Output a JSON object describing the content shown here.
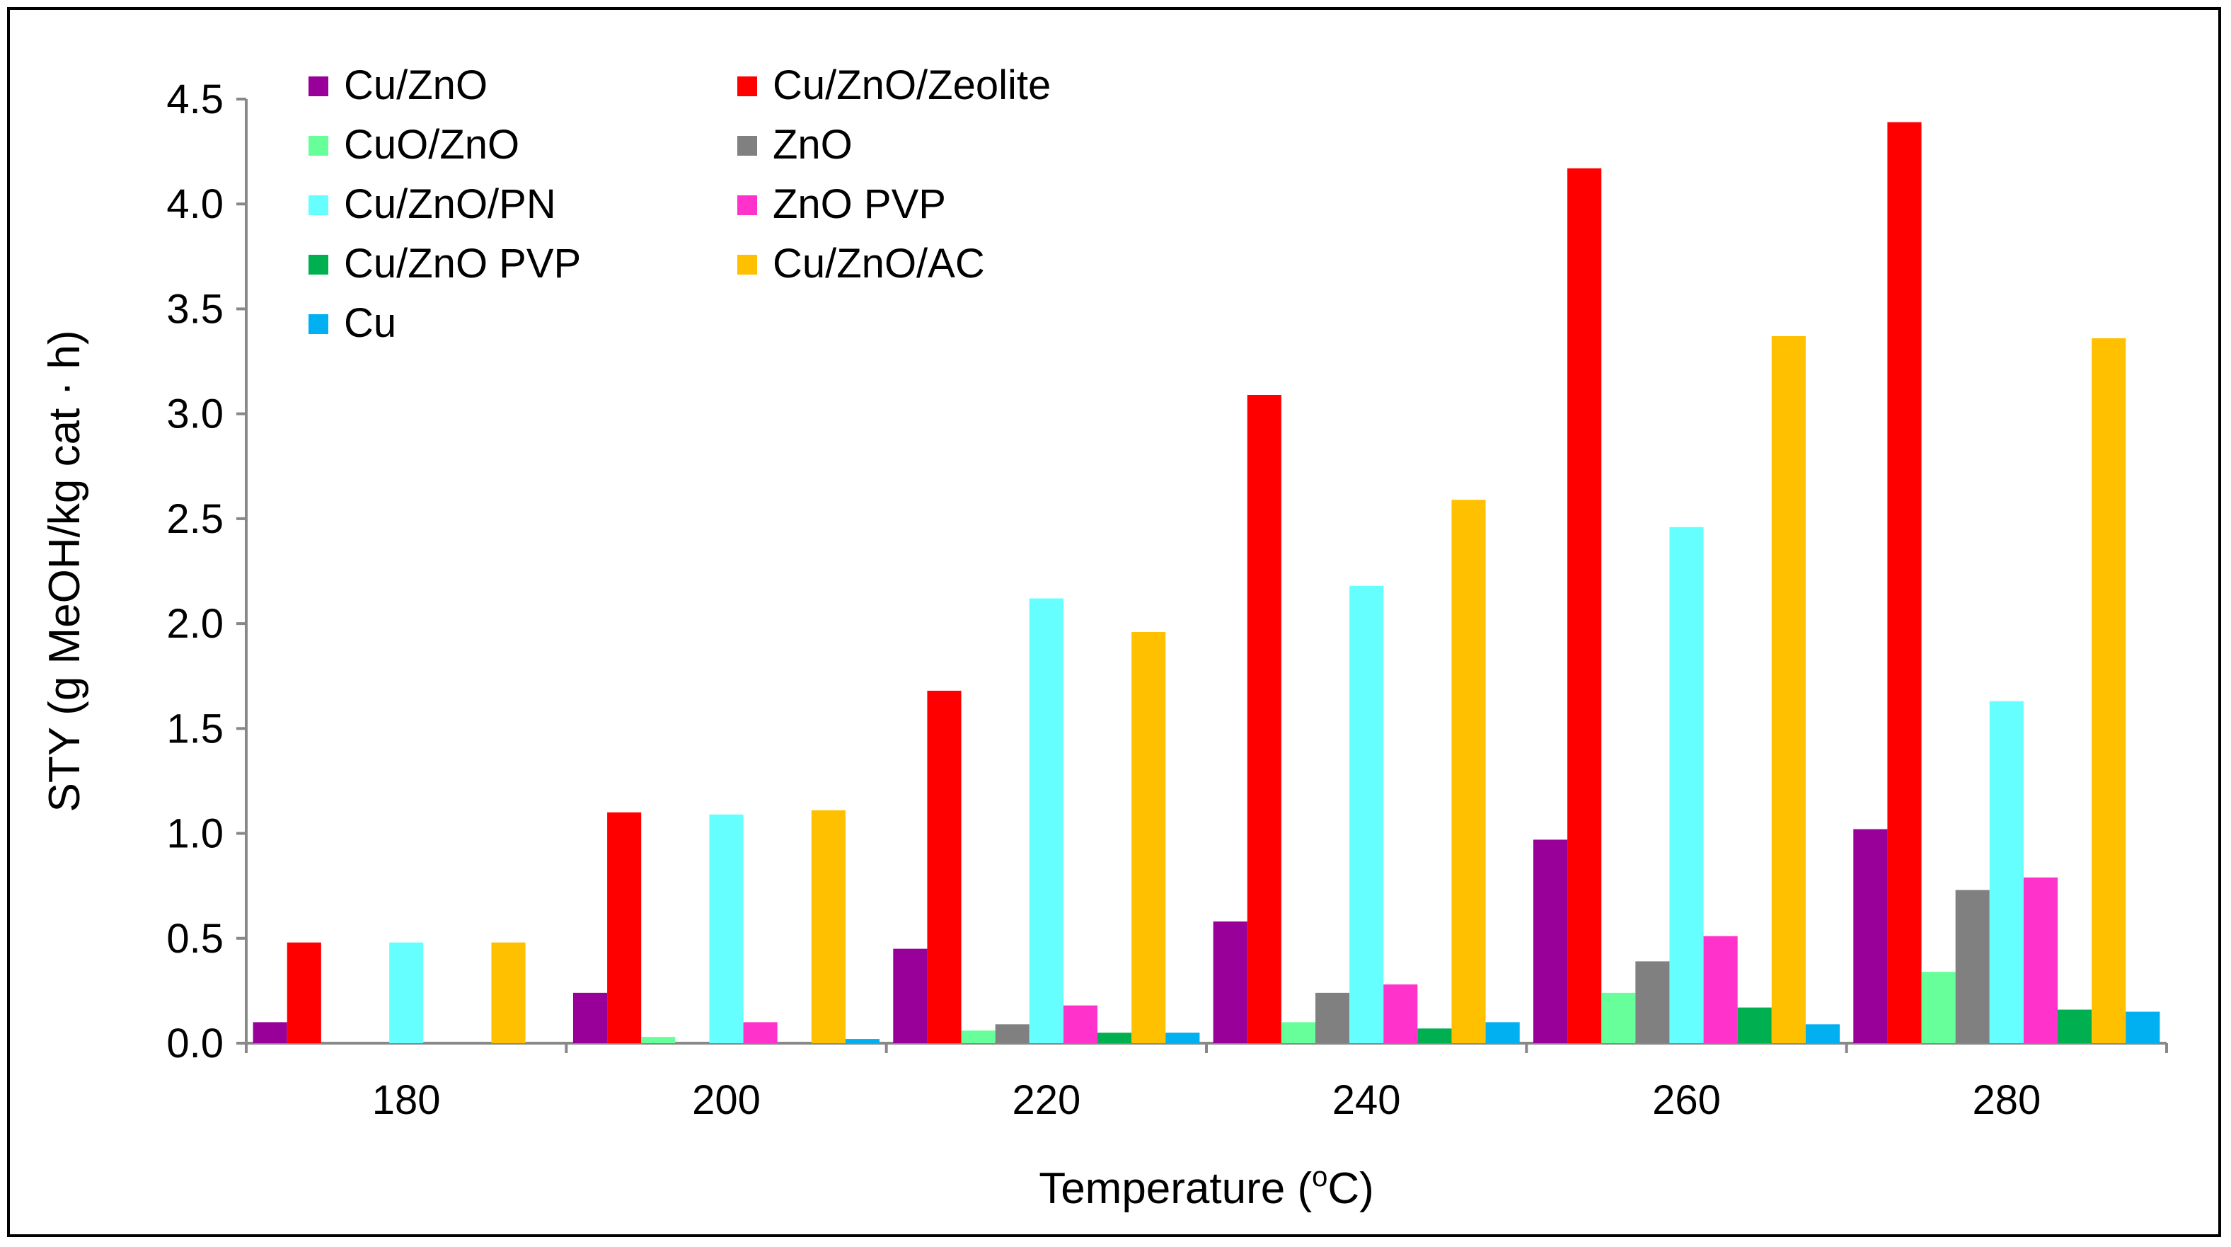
{
  "chart_data": {
    "type": "bar",
    "title": "",
    "xlabel": "Temperature (",
    "xlabel_sup": "o",
    "xlabel_tail": "C)",
    "ylabel": "STY (g MeOH/kg cat · h)",
    "ylim": [
      0,
      4.5
    ],
    "yticks": [
      "0.0",
      "0.5",
      "1.0",
      "1.5",
      "2.0",
      "2.5",
      "3.0",
      "3.5",
      "4.0",
      "4.5"
    ],
    "categories": [
      "180",
      "200",
      "220",
      "240",
      "260",
      "280"
    ],
    "legend_position": "top-left",
    "series": [
      {
        "name": "Cu/ZnO",
        "color": "#990099",
        "values": [
          0.1,
          0.24,
          0.45,
          0.58,
          0.97,
          1.02
        ]
      },
      {
        "name": "Cu/ZnO/Zeolite",
        "color": "#ff0000",
        "values": [
          0.48,
          1.1,
          1.68,
          3.09,
          4.17,
          4.39
        ]
      },
      {
        "name": "CuO/ZnO",
        "color": "#66ff99",
        "values": [
          0.0,
          0.03,
          0.06,
          0.1,
          0.24,
          0.34
        ]
      },
      {
        "name": "ZnO",
        "color": "#808080",
        "values": [
          0.0,
          0.0,
          0.09,
          0.24,
          0.39,
          0.73
        ]
      },
      {
        "name": "Cu/ZnO/PN",
        "color": "#66ffff",
        "values": [
          0.48,
          1.09,
          2.12,
          2.18,
          2.46,
          1.63
        ]
      },
      {
        "name": "ZnO PVP",
        "color": "#ff33cc",
        "values": [
          0.0,
          0.1,
          0.18,
          0.28,
          0.51,
          0.79
        ]
      },
      {
        "name": "Cu/ZnO PVP",
        "color": "#00b050",
        "values": [
          0.0,
          0.0,
          0.05,
          0.07,
          0.17,
          0.16
        ]
      },
      {
        "name": "Cu/ZnO/AC",
        "color": "#ffc000",
        "values": [
          0.48,
          1.11,
          1.96,
          2.59,
          3.37,
          3.36
        ]
      },
      {
        "name": "Cu",
        "color": "#00b0f0",
        "values": [
          0.0,
          0.02,
          0.05,
          0.1,
          0.09,
          0.15
        ]
      }
    ]
  }
}
